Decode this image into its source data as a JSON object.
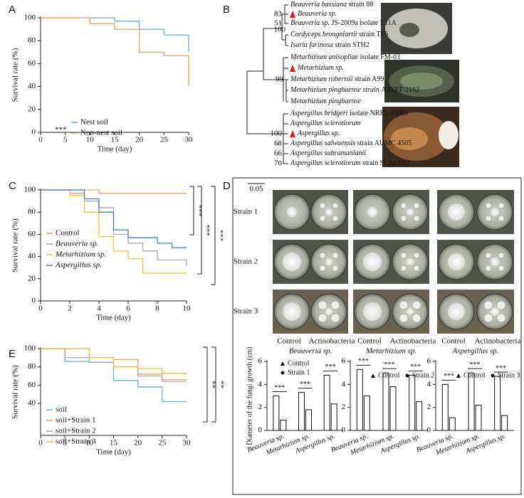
{
  "panel_labels": [
    "A",
    "B",
    "C",
    "D",
    "E"
  ],
  "chart_data": [
    {
      "type": "line",
      "step": true,
      "x": [
        0,
        10,
        15,
        20,
        25,
        30
      ],
      "series": [
        {
          "name": "Nest soil",
          "color": "#6aaed6",
          "values": [
            100,
            100,
            97,
            90,
            85,
            70
          ]
        },
        {
          "name": "Non-nest soil",
          "color": "#f0a05a",
          "values": [
            100,
            95,
            90,
            70,
            67,
            40
          ]
        }
      ],
      "xlim": [
        0,
        30
      ],
      "xticks": [
        0,
        5,
        10,
        15,
        20,
        25,
        30
      ],
      "ylim": [
        0,
        100
      ],
      "yticks": [
        0,
        20,
        40,
        60,
        80,
        100
      ],
      "xlabel": "Time (day)",
      "ylabel": "Survival rate (%)",
      "annotations": [
        "***"
      ]
    },
    {
      "type": "line",
      "step": true,
      "x": [
        0,
        1,
        2,
        3,
        4,
        5,
        6,
        7,
        8,
        9,
        10
      ],
      "series": [
        {
          "name": "Control",
          "color": "#f0a05a",
          "values": [
            100,
            100,
            100,
            100,
            97,
            97,
            97,
            97,
            97,
            97,
            97
          ]
        },
        {
          "name": "Beauveria sp.",
          "color": "#a6a6a6",
          "values": [
            100,
            100,
            97,
            90,
            84,
            60,
            52,
            45,
            37,
            37,
            32
          ]
        },
        {
          "name": "Metarhizium sp.",
          "color": "#f5c230",
          "values": [
            100,
            100,
            95,
            80,
            58,
            45,
            38,
            25,
            25,
            25,
            25
          ]
        },
        {
          "name": "Aspergillus sp.",
          "color": "#4a7ec2",
          "values": [
            100,
            100,
            100,
            92,
            80,
            64,
            57,
            57,
            52,
            48,
            48
          ]
        }
      ],
      "xlim": [
        0,
        10
      ],
      "xticks": [
        0,
        2,
        4,
        6,
        8,
        10
      ],
      "ylim": [
        0,
        100
      ],
      "yticks": [
        0,
        20,
        40,
        60,
        80,
        100
      ],
      "xlabel": "Time (day)",
      "ylabel": "Survival rate (%)",
      "annotations": [
        "***",
        "***",
        "***"
      ]
    },
    {
      "type": "line",
      "step": true,
      "x": [
        0,
        5,
        10,
        15,
        20,
        25,
        30
      ],
      "series": [
        {
          "name": "soil",
          "color": "#6aaed6",
          "values": [
            100,
            86,
            85,
            65,
            58,
            42,
            42
          ]
        },
        {
          "name": "soil+Strain 1",
          "color": "#f0a05a",
          "values": [
            100,
            100,
            90,
            88,
            72,
            66,
            66
          ]
        },
        {
          "name": "soil+Strain 2",
          "color": "#a6a6a6",
          "values": [
            100,
            90,
            85,
            80,
            70,
            64,
            64
          ]
        },
        {
          "name": "soil+Strain 3",
          "color": "#f5c230",
          "values": [
            100,
            100,
            90,
            80,
            78,
            73,
            73
          ]
        }
      ],
      "xlim": [
        0,
        30
      ],
      "xticks": [
        0,
        5,
        10,
        15,
        20,
        25,
        30
      ],
      "ylim": [
        5,
        100
      ],
      "yticks": [
        40,
        60,
        80,
        100
      ],
      "xlabel": "Time (day)",
      "ylabel": "Survival rate (%)",
      "annotations": [
        "**",
        "**"
      ]
    },
    {
      "type": "bar",
      "categories": [
        "Beauveria sp.",
        "Metarhizium sp.",
        "Aspergillus sp."
      ],
      "series": [
        {
          "name": "Control",
          "color": "#ffffff",
          "values": [
            3.0,
            3.3,
            4.8
          ]
        },
        {
          "name": "Strain 1",
          "color": "#ffffff",
          "values": [
            0.9,
            1.8,
            2.3
          ]
        }
      ],
      "ylim": [
        0,
        6
      ],
      "yticks": [
        0,
        2,
        4,
        6
      ],
      "ylabel": "Diameter of the fungi growth (cm)",
      "annotations": [
        "***",
        "***",
        "***"
      ]
    },
    {
      "type": "bar",
      "categories": [
        "Beauveria sp.",
        "Metarhizium sp.",
        "Aspergillus sp."
      ],
      "series": [
        {
          "name": "Control",
          "color": "#ffffff",
          "values": [
            5.3,
            5.0,
            4.8
          ]
        },
        {
          "name": "Strain 2",
          "color": "#ffffff",
          "values": [
            3.0,
            3.8,
            2.5
          ]
        }
      ],
      "ylim": [
        0,
        6
      ],
      "yticks": [
        0,
        2,
        4,
        6
      ],
      "annotations": [
        "***",
        "***",
        "***"
      ]
    },
    {
      "type": "bar",
      "categories": [
        "Beauveria sp.",
        "Metarhizium sp.",
        "Aspergillus sp."
      ],
      "series": [
        {
          "name": "Control",
          "color": "#ffffff",
          "values": [
            4.0,
            5.0,
            4.7
          ]
        },
        {
          "name": "Strain 3",
          "color": "#ffffff",
          "values": [
            1.1,
            2.2,
            1.3
          ]
        }
      ],
      "ylim": [
        0,
        6
      ],
      "yticks": [
        0,
        2,
        4,
        6
      ],
      "annotations": [
        "***",
        "***",
        "***"
      ]
    }
  ],
  "tree": {
    "leaves": [
      {
        "name": "Beauveria bassiana",
        "suffix": "strain  88"
      },
      {
        "name": "Beauveria sp.",
        "highlight": true
      },
      {
        "name": "Beauveria sp.",
        "suffix": "JS-2009a isolate L11A"
      },
      {
        "name": "Cordyceps brongniartii",
        "suffix": "strain TF6"
      },
      {
        "name": "Isaria farinosa",
        "suffix": "strain STH2"
      },
      {
        "name": "Metarhizium anisopliae",
        "suffix": "isolate FM-03"
      },
      {
        "name": "Metarhizium sp.",
        "highlight": true
      },
      {
        "name": "Metarhizium robertsii",
        "suffix": "strain A99"
      },
      {
        "name": "Metarhizium pinghaense strain",
        "suffix": "ARSEF 2162"
      },
      {
        "name": "Metarhizium pinghaense"
      },
      {
        "name": "Aspergillus bridgeri",
        "suffix": "isolate NRRL 35081"
      },
      {
        "name": "Aspergillus sclerotiorum"
      },
      {
        "name": "Aspergillus sp.",
        "highlight": true
      },
      {
        "name": "Aspergillus salwaensis",
        "suffix": "strain AUMC 4505"
      },
      {
        "name": "Aspergillus subramanianii"
      },
      {
        "name": "Aspergillus sclerotiorum",
        "suffix": "strain SCAU092"
      }
    ],
    "bootstrap": [
      "83",
      "51",
      "100",
      "99",
      "100",
      "68",
      "66",
      "70"
    ],
    "scale_label": "0.05"
  },
  "plates": {
    "row_labels": [
      "Strain 1",
      "Strain 2",
      "Strain 3"
    ],
    "column_labels": [
      "Control",
      "Actinobacteria"
    ],
    "fungi": [
      "Beauveria sp.",
      "Metarhizium sp.",
      "Aspergillus sp."
    ]
  }
}
